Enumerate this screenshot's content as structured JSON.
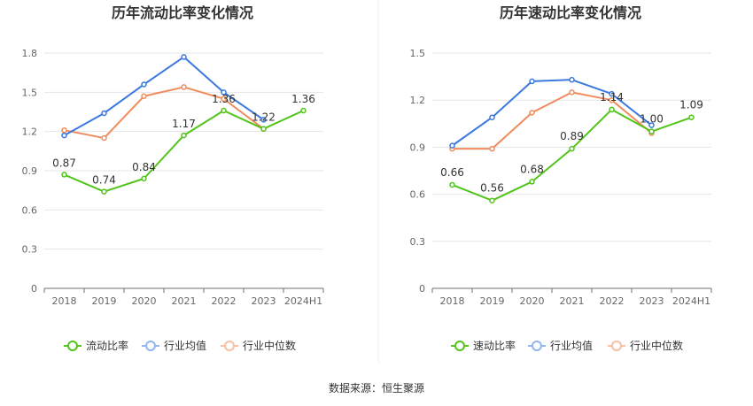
{
  "source_text": "数据来源：恒生聚源",
  "chart_data": [
    {
      "type": "line",
      "title": "历年流动比率变化情况",
      "categories": [
        "2018",
        "2019",
        "2020",
        "2021",
        "2022",
        "2023",
        "2024H1"
      ],
      "ylim": [
        0,
        1.8
      ],
      "yticks": [
        0,
        0.3,
        0.6,
        0.9,
        1.2,
        1.5,
        1.8
      ],
      "ytick_labels": [
        "0",
        "0.3",
        "0.6",
        "0.9",
        "1.2",
        "1.5",
        "1.8"
      ],
      "grid": true,
      "legend": "bottom",
      "series": [
        {
          "name": "流动比率",
          "color": "#52c41a",
          "values": [
            0.87,
            0.74,
            0.84,
            1.17,
            1.36,
            1.22,
            1.36
          ],
          "labels": [
            "0.87",
            "0.74",
            "0.84",
            "1.17",
            "1.36",
            "1.22",
            "1.36"
          ]
        },
        {
          "name": "行业均值",
          "color": "#3b78e0",
          "values": [
            1.17,
            1.34,
            1.56,
            1.77,
            1.5,
            1.29,
            null
          ]
        },
        {
          "name": "行业中位数",
          "color": "#f08c5c",
          "values": [
            1.21,
            1.15,
            1.47,
            1.54,
            1.45,
            1.22,
            null
          ]
        }
      ]
    },
    {
      "type": "line",
      "title": "历年速动比率变化情况",
      "categories": [
        "2018",
        "2019",
        "2020",
        "2021",
        "2022",
        "2023",
        "2024H1"
      ],
      "ylim": [
        0,
        1.5
      ],
      "yticks": [
        0,
        0.3,
        0.6,
        0.9,
        1.2,
        1.5
      ],
      "ytick_labels": [
        "0",
        "0.3",
        "0.6",
        "0.9",
        "1.2",
        "1.5"
      ],
      "grid": true,
      "legend": "bottom",
      "series": [
        {
          "name": "速动比率",
          "color": "#52c41a",
          "values": [
            0.66,
            0.56,
            0.68,
            0.89,
            1.14,
            1.0,
            1.09
          ],
          "labels": [
            "0.66",
            "0.56",
            "0.68",
            "0.89",
            "1.14",
            "1.00",
            "1.09"
          ]
        },
        {
          "name": "行业均值",
          "color": "#3b78e0",
          "values": [
            0.91,
            1.09,
            1.32,
            1.33,
            1.24,
            1.04,
            null
          ]
        },
        {
          "name": "行业中位数",
          "color": "#f08c5c",
          "values": [
            0.89,
            0.89,
            1.12,
            1.25,
            1.2,
            0.99,
            null
          ]
        }
      ]
    }
  ]
}
